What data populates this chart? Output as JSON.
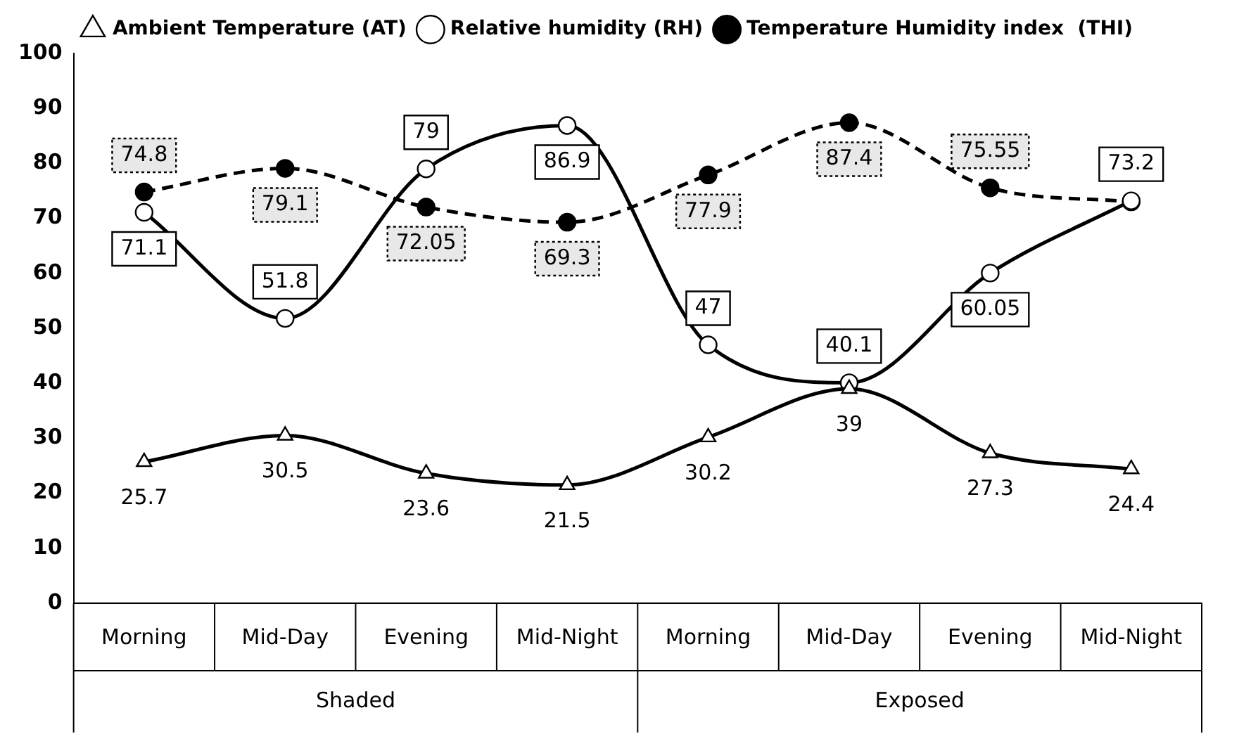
{
  "chart_data": {
    "type": "line",
    "categories": [
      "Morning",
      "Mid-Day",
      "Evening",
      "Mid-Night",
      "Morning",
      "Mid-Day",
      "Evening",
      "Mid-Night"
    ],
    "series": [
      {
        "name": "Ambient Temperature (AT)",
        "color": "#000000",
        "marker": "triangle",
        "line_style": "solid",
        "values": [
          25.7,
          30.5,
          23.6,
          21.5,
          30.2,
          39,
          27.3,
          24.4
        ]
      },
      {
        "name": "Relative humidity (RH)",
        "color": "#000000",
        "marker": "circle",
        "line_style": "solid",
        "values": [
          71.1,
          51.8,
          79,
          86.9,
          47,
          40.1,
          60.05,
          73.2
        ]
      },
      {
        "name": "Temperature Humidity index  (THI)",
        "color": "#000000",
        "marker": "circle",
        "line_style": "dashed",
        "values": [
          74.8,
          79.1,
          72.05,
          69.3,
          77.9,
          87.4,
          75.55,
          73
        ],
        "value_labels": [
          "74.8",
          "79.1",
          "72.05",
          "69.3",
          "77.9",
          "87.4",
          "75.55",
          null
        ]
      }
    ],
    "ylim": [
      0,
      100
    ],
    "yticks": [
      0,
      10,
      20,
      30,
      40,
      50,
      60,
      70,
      80,
      90,
      100
    ],
    "grid": false,
    "legend": "top",
    "data_labels": true,
    "annotations": [
      "Shaded",
      "Exposed"
    ]
  }
}
